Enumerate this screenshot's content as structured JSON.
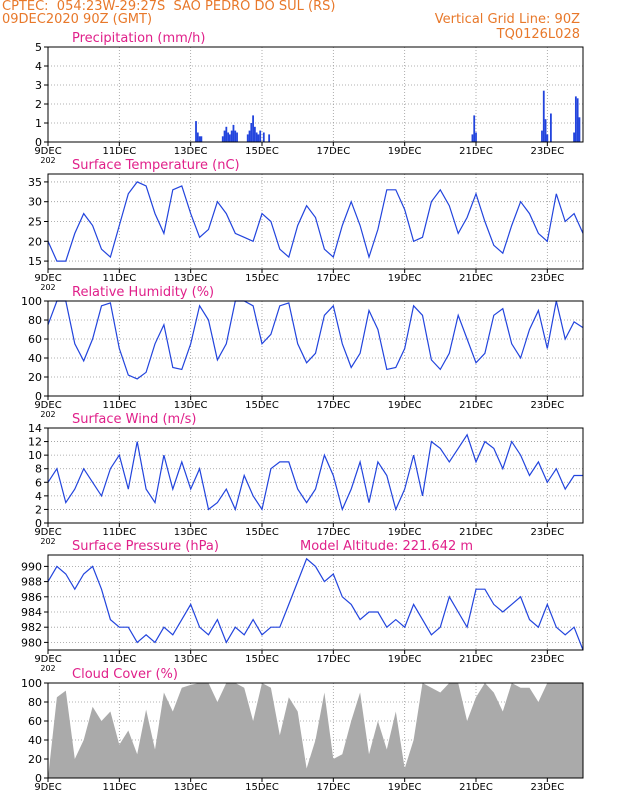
{
  "header": {
    "line1": "CPTEC:  054:23W-29:27S  SAO PEDRO DO SUL (RS)",
    "line2_left": "09DEC2020 90Z (GMT)",
    "line2_right": "Vertical Grid Line: 90Z",
    "line3_right": "TQ0126L028",
    "text_color": "#e8782a"
  },
  "colors": {
    "title": "#e0208a",
    "series": "#2244dd",
    "cloud": "#aaaaaa",
    "axis": "#000000"
  },
  "x_ticks": [
    "9DEC",
    "11DEC",
    "13DEC",
    "15DEC",
    "17DEC",
    "19DEC",
    "21DEC",
    "23DEC"
  ],
  "x_tick_extra": "202",
  "chart_data": [
    {
      "type": "bar",
      "title": "Precipitation (mm/h)",
      "ylim": [
        0,
        5
      ],
      "yticks": [
        0,
        1,
        2,
        3,
        4,
        5
      ],
      "bars": [
        [
          4.15,
          1.1
        ],
        [
          4.2,
          0.5
        ],
        [
          4.25,
          0.3
        ],
        [
          4.3,
          0.3
        ],
        [
          4.9,
          0.3
        ],
        [
          4.95,
          0.6
        ],
        [
          5.0,
          0.8
        ],
        [
          5.05,
          0.5
        ],
        [
          5.1,
          0.4
        ],
        [
          5.15,
          0.6
        ],
        [
          5.2,
          0.9
        ],
        [
          5.25,
          0.6
        ],
        [
          5.3,
          0.5
        ],
        [
          5.6,
          0.4
        ],
        [
          5.65,
          0.6
        ],
        [
          5.7,
          1.0
        ],
        [
          5.75,
          1.4
        ],
        [
          5.8,
          0.8
        ],
        [
          5.85,
          0.5
        ],
        [
          5.9,
          0.4
        ],
        [
          5.95,
          0.6
        ],
        [
          6.05,
          0.5
        ],
        [
          6.2,
          0.4
        ],
        [
          11.9,
          0.4
        ],
        [
          11.95,
          1.4
        ],
        [
          12.0,
          0.5
        ],
        [
          13.85,
          0.6
        ],
        [
          13.9,
          2.7
        ],
        [
          13.95,
          1.2
        ],
        [
          14.0,
          0.4
        ],
        [
          14.1,
          1.5
        ],
        [
          14.75,
          0.5
        ],
        [
          14.8,
          2.4
        ],
        [
          14.85,
          2.3
        ],
        [
          14.9,
          1.3
        ]
      ]
    },
    {
      "type": "line",
      "title": "Surface Temperature (nC)",
      "ylim": [
        13,
        37
      ],
      "yticks": [
        15,
        20,
        25,
        30,
        35
      ],
      "x": [
        0,
        0.25,
        0.5,
        0.75,
        1,
        1.25,
        1.5,
        1.75,
        2,
        2.25,
        2.5,
        2.75,
        3,
        3.25,
        3.5,
        3.75,
        4,
        4.25,
        4.5,
        4.75,
        5,
        5.25,
        5.5,
        5.75,
        6,
        6.25,
        6.5,
        6.75,
        7,
        7.25,
        7.5,
        7.75,
        8,
        8.25,
        8.5,
        8.75,
        9,
        9.25,
        9.5,
        9.75,
        10,
        10.25,
        10.5,
        10.75,
        11,
        11.25,
        11.5,
        11.75,
        12,
        12.25,
        12.5,
        12.75,
        13,
        13.25,
        13.5,
        13.75,
        14,
        14.25,
        14.5,
        14.75,
        15
      ],
      "y": [
        20,
        15,
        15,
        22,
        27,
        24,
        18,
        16,
        24,
        32,
        35,
        34,
        27,
        22,
        33,
        34,
        27,
        21,
        23,
        30,
        27,
        22,
        21,
        20,
        27,
        25,
        18,
        16,
        24,
        29,
        26,
        18,
        16,
        24,
        30,
        24,
        16,
        23,
        33,
        33,
        28,
        20,
        21,
        30,
        33,
        29,
        22,
        26,
        32,
        25,
        19,
        17,
        24,
        30,
        27,
        22,
        20,
        32,
        25,
        27,
        22
      ]
    },
    {
      "type": "line",
      "title": "Relative Humidity (%)",
      "ylim": [
        0,
        100
      ],
      "yticks": [
        0,
        20,
        40,
        60,
        80,
        100
      ],
      "x": [
        0,
        0.25,
        0.5,
        0.75,
        1,
        1.25,
        1.5,
        1.75,
        2,
        2.25,
        2.5,
        2.75,
        3,
        3.25,
        3.5,
        3.75,
        4,
        4.25,
        4.5,
        4.75,
        5,
        5.25,
        5.5,
        5.75,
        6,
        6.25,
        6.5,
        6.75,
        7,
        7.25,
        7.5,
        7.75,
        8,
        8.25,
        8.5,
        8.75,
        9,
        9.25,
        9.5,
        9.75,
        10,
        10.25,
        10.5,
        10.75,
        11,
        11.25,
        11.5,
        11.75,
        12,
        12.25,
        12.5,
        12.75,
        13,
        13.25,
        13.5,
        13.75,
        14,
        14.25,
        14.5,
        14.75,
        15
      ],
      "y": [
        75,
        100,
        100,
        55,
        37,
        60,
        95,
        98,
        50,
        22,
        18,
        25,
        55,
        75,
        30,
        28,
        55,
        95,
        80,
        38,
        55,
        100,
        100,
        95,
        55,
        65,
        95,
        98,
        55,
        35,
        45,
        85,
        95,
        55,
        30,
        45,
        90,
        70,
        28,
        30,
        50,
        95,
        85,
        38,
        28,
        45,
        85,
        60,
        35,
        45,
        85,
        92,
        55,
        40,
        70,
        90,
        50,
        100,
        60,
        78,
        72
      ]
    },
    {
      "type": "line",
      "title": "Surface Wind (m/s)",
      "ylim": [
        0,
        14
      ],
      "yticks": [
        0,
        2,
        4,
        6,
        8,
        10,
        12,
        14
      ],
      "x": [
        0,
        0.25,
        0.5,
        0.75,
        1,
        1.25,
        1.5,
        1.75,
        2,
        2.25,
        2.5,
        2.75,
        3,
        3.25,
        3.5,
        3.75,
        4,
        4.25,
        4.5,
        4.75,
        5,
        5.25,
        5.5,
        5.75,
        6,
        6.25,
        6.5,
        6.75,
        7,
        7.25,
        7.5,
        7.75,
        8,
        8.25,
        8.5,
        8.75,
        9,
        9.25,
        9.5,
        9.75,
        10,
        10.25,
        10.5,
        10.75,
        11,
        11.25,
        11.5,
        11.75,
        12,
        12.25,
        12.5,
        12.75,
        13,
        13.25,
        13.5,
        13.75,
        14,
        14.25,
        14.5,
        14.75,
        15
      ],
      "y": [
        6,
        8,
        3,
        5,
        8,
        6,
        4,
        8,
        10,
        5,
        12,
        5,
        3,
        10,
        5,
        9,
        5,
        8,
        2,
        3,
        5,
        2,
        7,
        4,
        2,
        8,
        9,
        9,
        5,
        3,
        5,
        10,
        7,
        2,
        5,
        9,
        3,
        9,
        7,
        2,
        5,
        10,
        4,
        12,
        11,
        9,
        11,
        13,
        9,
        12,
        11,
        8,
        12,
        10,
        7,
        9,
        6,
        8,
        5,
        7,
        7
      ]
    },
    {
      "type": "line",
      "title": "Surface Pressure (hPa)",
      "annotation": "Model Altitude: 221.642 m",
      "ylim": [
        979,
        991.5
      ],
      "yticks": [
        980,
        982,
        984,
        986,
        988,
        990
      ],
      "x": [
        0,
        0.25,
        0.5,
        0.75,
        1,
        1.25,
        1.5,
        1.75,
        2,
        2.25,
        2.5,
        2.75,
        3,
        3.25,
        3.5,
        3.75,
        4,
        4.25,
        4.5,
        4.75,
        5,
        5.25,
        5.5,
        5.75,
        6,
        6.25,
        6.5,
        6.75,
        7,
        7.25,
        7.5,
        7.75,
        8,
        8.25,
        8.5,
        8.75,
        9,
        9.25,
        9.5,
        9.75,
        10,
        10.25,
        10.5,
        10.75,
        11,
        11.25,
        11.5,
        11.75,
        12,
        12.25,
        12.5,
        12.75,
        13,
        13.25,
        13.5,
        13.75,
        14,
        14.25,
        14.5,
        14.75,
        15
      ],
      "y": [
        988,
        990,
        989,
        987,
        989,
        990,
        987,
        983,
        982,
        982,
        980,
        981,
        980,
        982,
        981,
        983,
        985,
        982,
        981,
        983,
        980,
        982,
        981,
        983,
        981,
        982,
        982,
        985,
        988,
        991,
        990,
        988,
        989,
        986,
        985,
        983,
        984,
        984,
        982,
        983,
        982,
        985,
        983,
        981,
        982,
        986,
        984,
        982,
        987,
        987,
        985,
        984,
        985,
        986,
        983,
        982,
        985,
        982,
        981,
        982,
        979
      ]
    },
    {
      "type": "area",
      "title": "Cloud Cover (%)",
      "ylim": [
        0,
        100
      ],
      "yticks": [
        0,
        20,
        40,
        60,
        80,
        100
      ],
      "x": [
        0,
        0.25,
        0.5,
        0.75,
        1,
        1.25,
        1.5,
        1.75,
        2,
        2.25,
        2.5,
        2.75,
        3,
        3.25,
        3.5,
        3.75,
        4,
        4.25,
        4.5,
        4.75,
        5,
        5.25,
        5.5,
        5.75,
        6,
        6.25,
        6.5,
        6.75,
        7,
        7.25,
        7.5,
        7.75,
        8,
        8.25,
        8.5,
        8.75,
        9,
        9.25,
        9.5,
        9.75,
        10,
        10.25,
        10.5,
        10.75,
        11,
        11.25,
        11.5,
        11.75,
        12,
        12.25,
        12.5,
        12.75,
        13,
        13.25,
        13.5,
        13.75,
        14,
        14.25,
        14.5,
        14.75,
        15
      ],
      "y": [
        0,
        85,
        92,
        20,
        40,
        75,
        60,
        70,
        35,
        50,
        25,
        72,
        30,
        90,
        70,
        95,
        98,
        100,
        100,
        80,
        100,
        100,
        95,
        60,
        100,
        95,
        45,
        85,
        70,
        10,
        40,
        90,
        20,
        25,
        60,
        90,
        25,
        60,
        30,
        70,
        10,
        40,
        100,
        95,
        90,
        100,
        100,
        60,
        85,
        100,
        90,
        70,
        100,
        95,
        95,
        80,
        100,
        100,
        100,
        100,
        100
      ]
    }
  ]
}
